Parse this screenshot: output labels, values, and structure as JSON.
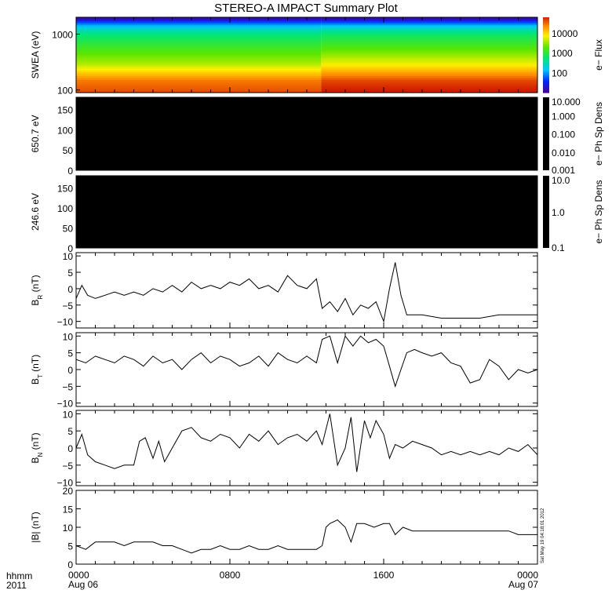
{
  "title": "STEREO-A IMPACT Summary Plot",
  "stamp": "Sat May 19 04:18:01 2012",
  "footer": {
    "row1": "hhmm",
    "row2": "2011"
  },
  "chart_data": {
    "x_ticks": [
      {
        "time": "0000",
        "date": "Aug 06",
        "hour": 0
      },
      {
        "time": "0800",
        "date": "",
        "hour": 8
      },
      {
        "time": "1600",
        "date": "",
        "hour": 16
      },
      {
        "time": "0000",
        "date": "Aug 07",
        "hour": 24
      }
    ],
    "xlim_hours": [
      0,
      24
    ],
    "panels": [
      {
        "id": "swea",
        "type": "heatmap",
        "ylabel": "SWEA (eV)",
        "ylog": true,
        "ylim": [
          90,
          2000
        ],
        "ytick_labels": [
          {
            "value": 100,
            "label": "100"
          },
          {
            "value": 1000,
            "label": "1000"
          }
        ],
        "colorbar": {
          "label": "e− Flux",
          "log": true,
          "range": [
            10,
            60000
          ],
          "ticks": [
            {
              "value": 100,
              "label": "100"
            },
            {
              "value": 1000,
              "label": "1000"
            },
            {
              "value": 10000,
              "label": "10000"
            }
          ]
        },
        "step_hour": 12.75,
        "spectrum_before": [
          [
            90,
            40000
          ],
          [
            150,
            25000
          ],
          [
            300,
            3500
          ],
          [
            600,
            1200
          ],
          [
            1000,
            500
          ],
          [
            1300,
            200
          ],
          [
            1600,
            60
          ],
          [
            1800,
            25
          ],
          [
            2000,
            12
          ]
        ],
        "spectrum_after": [
          [
            90,
            70000
          ],
          [
            150,
            40000
          ],
          [
            300,
            6000
          ],
          [
            600,
            1500
          ],
          [
            1000,
            600
          ],
          [
            1300,
            230
          ],
          [
            1600,
            60
          ],
          [
            1800,
            25
          ],
          [
            2000,
            12
          ]
        ]
      },
      {
        "id": "pad650",
        "type": "heatmap",
        "ylabel": "650.7 eV",
        "ylim": [
          0,
          180
        ],
        "ytick_labels": [
          {
            "value": 0,
            "label": "0"
          },
          {
            "value": 50,
            "label": "50"
          },
          {
            "value": 100,
            "label": "100"
          },
          {
            "value": 150,
            "label": "150"
          }
        ],
        "fill": "no-data-black",
        "colorbar": {
          "label": "e− Ph Sp Dens",
          "log": true,
          "range": [
            0.001,
            10
          ],
          "ticks": [
            {
              "value": 0.001,
              "label": "0.001"
            },
            {
              "value": 0.01,
              "label": "0.010"
            },
            {
              "value": 0.1,
              "label": "0.100"
            },
            {
              "value": 1,
              "label": "1.000"
            },
            {
              "value": 10,
              "label": "10.000"
            }
          ]
        }
      },
      {
        "id": "pad246",
        "type": "heatmap",
        "ylabel": "246.6 eV",
        "ylim": [
          0,
          180
        ],
        "ytick_labels": [
          {
            "value": 0,
            "label": "0"
          },
          {
            "value": 50,
            "label": "50"
          },
          {
            "value": 100,
            "label": "100"
          },
          {
            "value": 150,
            "label": "150"
          }
        ],
        "fill": "no-data-black",
        "colorbar": {
          "label": "e− Ph Sp Dens",
          "log": true,
          "range": [
            0.1,
            10
          ],
          "ticks": [
            {
              "value": 0.1,
              "label": "0.1"
            },
            {
              "value": 1,
              "label": "1.0"
            },
            {
              "value": 10,
              "label": "10.0"
            }
          ]
        }
      },
      {
        "id": "br",
        "type": "line",
        "ylabel": "B",
        "ylabel_sub": "R",
        "ylabel_unit": " (nT)",
        "ylim": [
          -12,
          11
        ],
        "ytick_labels": [
          {
            "value": -10,
            "label": "−10"
          },
          {
            "value": -5,
            "label": "−5"
          },
          {
            "value": 0,
            "label": "0"
          },
          {
            "value": 5,
            "label": "5"
          },
          {
            "value": 10,
            "label": "10"
          }
        ],
        "x": [
          0,
          0.3,
          0.6,
          1,
          1.5,
          2,
          2.5,
          3,
          3.5,
          4,
          4.5,
          5,
          5.5,
          6,
          6.5,
          7,
          7.5,
          8,
          8.5,
          9,
          9.5,
          10,
          10.5,
          11,
          11.5,
          12,
          12.5,
          12.8,
          13.2,
          13.6,
          14,
          14.4,
          14.8,
          15.2,
          15.6,
          16,
          16.3,
          16.6,
          16.9,
          17.2,
          17.6,
          18,
          19,
          20,
          21,
          22,
          23,
          24
        ],
        "y": [
          -3,
          1,
          -2,
          -3,
          -2,
          -1,
          -2,
          -1,
          -2,
          0,
          -1,
          1,
          -1,
          2,
          0,
          1,
          0,
          2,
          1,
          3,
          0,
          1,
          -1,
          4,
          1,
          0,
          3,
          -6,
          -4,
          -7,
          -3,
          -8,
          -5,
          -6,
          -4,
          -10,
          0,
          8,
          -2,
          -8,
          -8,
          -8,
          -9,
          -9,
          -9,
          -8,
          -8,
          -8
        ]
      },
      {
        "id": "bt",
        "type": "line",
        "ylabel": "B",
        "ylabel_sub": "T",
        "ylabel_unit": " (nT)",
        "ylim": [
          -11,
          11
        ],
        "ytick_labels": [
          {
            "value": -10,
            "label": "−10"
          },
          {
            "value": -5,
            "label": "−5"
          },
          {
            "value": 0,
            "label": "0"
          },
          {
            "value": 5,
            "label": "5"
          },
          {
            "value": 10,
            "label": "10"
          }
        ],
        "x": [
          0,
          0.5,
          1,
          1.5,
          2,
          2.5,
          3,
          3.5,
          4,
          4.5,
          5,
          5.5,
          6,
          6.5,
          7,
          7.5,
          8,
          8.5,
          9,
          9.5,
          10,
          10.5,
          11,
          11.5,
          12,
          12.5,
          12.8,
          13.2,
          13.6,
          14,
          14.4,
          14.8,
          15.2,
          15.6,
          16,
          16.3,
          16.6,
          16.9,
          17.2,
          17.6,
          18,
          18.5,
          19,
          19.5,
          20,
          20.5,
          21,
          21.5,
          22,
          22.5,
          23,
          23.5,
          24
        ],
        "y": [
          3,
          2,
          4,
          3,
          2,
          4,
          3,
          1,
          4,
          2,
          3,
          0,
          3,
          5,
          2,
          4,
          3,
          1,
          2,
          4,
          1,
          5,
          3,
          2,
          4,
          2,
          9,
          10,
          2,
          10,
          7,
          10,
          8,
          9,
          7,
          1,
          -5,
          0,
          5,
          6,
          5,
          4,
          5,
          2,
          1,
          -4,
          -3,
          3,
          1,
          -3,
          0,
          -1,
          0
        ]
      },
      {
        "id": "bn",
        "type": "line",
        "ylabel": "B",
        "ylabel_sub": "N",
        "ylabel_unit": " (nT)",
        "ylim": [
          -11,
          11
        ],
        "ytick_labels": [
          {
            "value": -10,
            "label": "−10"
          },
          {
            "value": -5,
            "label": "−5"
          },
          {
            "value": 0,
            "label": "0"
          },
          {
            "value": 5,
            "label": "5"
          },
          {
            "value": 10,
            "label": "10"
          }
        ],
        "x": [
          0,
          0.3,
          0.6,
          1,
          1.5,
          2,
          2.5,
          3,
          3.3,
          3.6,
          4,
          4.3,
          4.6,
          5,
          5.5,
          6,
          6.5,
          7,
          7.5,
          8,
          8.5,
          9,
          9.5,
          10,
          10.5,
          11,
          11.5,
          12,
          12.5,
          12.8,
          13.2,
          13.6,
          14,
          14.3,
          14.6,
          15,
          15.3,
          15.6,
          16,
          16.3,
          16.6,
          17,
          17.5,
          18,
          18.5,
          19,
          19.5,
          20,
          20.5,
          21,
          21.5,
          22,
          22.5,
          23,
          23.5,
          24
        ],
        "y": [
          0,
          4,
          -2,
          -4,
          -5,
          -6,
          -5,
          -5,
          2,
          3,
          -3,
          2,
          -4,
          0,
          5,
          6,
          3,
          2,
          4,
          3,
          0,
          4,
          2,
          5,
          1,
          3,
          4,
          2,
          5,
          1,
          10,
          -5,
          0,
          9,
          -7,
          8,
          3,
          8,
          4,
          -3,
          1,
          0,
          2,
          1,
          0,
          -2,
          -1,
          -2,
          -1,
          -2,
          -1,
          -2,
          0,
          -1,
          1,
          -2
        ]
      },
      {
        "id": "bmag",
        "type": "line",
        "ylabel": "|B| (nT)",
        "ylim": [
          0,
          20
        ],
        "ytick_labels": [
          {
            "value": 0,
            "label": "0"
          },
          {
            "value": 5,
            "label": "5"
          },
          {
            "value": 10,
            "label": "10"
          },
          {
            "value": 15,
            "label": "15"
          },
          {
            "value": 20,
            "label": "20"
          }
        ],
        "x": [
          0,
          0.5,
          1,
          1.5,
          2,
          2.5,
          3,
          3.5,
          4,
          4.5,
          5,
          5.5,
          6,
          6.5,
          7,
          7.5,
          8,
          8.5,
          9,
          9.5,
          10,
          10.5,
          11,
          11.5,
          12,
          12.5,
          12.8,
          13,
          13.2,
          13.6,
          14,
          14.3,
          14.6,
          15,
          15.5,
          16,
          16.3,
          16.6,
          17,
          17.5,
          18,
          18.5,
          19,
          19.5,
          20,
          20.5,
          21,
          21.5,
          22,
          22.5,
          23,
          23.5,
          24
        ],
        "y": [
          5,
          4,
          6,
          6,
          6,
          5,
          6,
          6,
          6,
          5,
          5,
          4,
          3,
          4,
          4,
          5,
          4,
          4,
          5,
          4,
          4,
          5,
          4,
          4,
          4,
          4,
          5,
          10,
          11,
          12,
          10,
          6,
          11,
          11,
          10,
          11,
          11,
          8,
          10,
          9,
          9,
          9,
          9,
          9,
          9,
          9,
          9,
          9,
          9,
          9,
          8,
          8,
          8
        ]
      }
    ]
  }
}
